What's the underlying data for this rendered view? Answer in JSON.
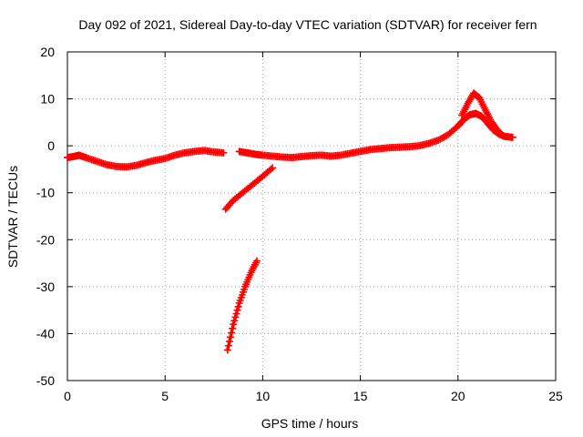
{
  "chart_data": {
    "type": "scatter",
    "title": "Day 092 of 2021, Sidereal Day-to-day VTEC variation (SDTVAR) for receiver fern",
    "xlabel": "GPS time / hours",
    "ylabel": "SDTVAR / TECUs",
    "xlim": [
      0,
      25
    ],
    "ylim": [
      -50,
      20
    ],
    "x_ticks": [
      0,
      5,
      10,
      15,
      20,
      25
    ],
    "y_ticks": [
      -50,
      -40,
      -30,
      -20,
      -10,
      0,
      10,
      20
    ],
    "grid": true,
    "marker": "+",
    "series_color": "#ff0000",
    "series": [
      {
        "name": "main-trace-a",
        "x": [
          0.0,
          0.3,
          0.6,
          1.0,
          1.5,
          2.0,
          2.5,
          3.0,
          3.5,
          4.0,
          4.5,
          5.0,
          5.5,
          6.0,
          6.5,
          7.0,
          7.5,
          8.0
        ],
        "y": [
          -2.5,
          -2.3,
          -2.0,
          -2.6,
          -3.3,
          -4.0,
          -4.4,
          -4.5,
          -4.2,
          -3.6,
          -3.1,
          -2.7,
          -2.0,
          -1.5,
          -1.2,
          -1.0,
          -1.3,
          -1.5
        ]
      },
      {
        "name": "main-trace-b",
        "x": [
          8.8,
          9.2,
          9.6,
          10.0,
          10.5,
          11.0,
          11.5,
          12.0,
          12.5,
          13.0,
          13.5,
          14.0,
          14.5,
          15.0,
          15.5,
          16.0,
          16.5,
          17.0,
          17.5,
          18.0,
          18.5,
          19.0,
          19.5,
          20.0,
          20.3,
          20.6,
          20.9,
          21.2,
          21.5,
          21.8,
          22.1,
          22.4,
          22.8
        ],
        "y": [
          -1.2,
          -1.5,
          -1.8,
          -2.0,
          -2.2,
          -2.4,
          -2.5,
          -2.3,
          -2.1,
          -2.0,
          -2.2,
          -2.0,
          -1.6,
          -1.2,
          -0.8,
          -0.6,
          -0.4,
          -0.3,
          -0.2,
          0.0,
          0.5,
          1.2,
          2.4,
          4.2,
          5.6,
          6.6,
          6.9,
          6.3,
          4.9,
          3.4,
          2.5,
          2.0,
          1.8
        ]
      },
      {
        "name": "upper-arc",
        "x": [
          20.2,
          20.5,
          20.8,
          21.1,
          21.4,
          21.7,
          22.0,
          22.3
        ],
        "y": [
          6.5,
          9.0,
          11.2,
          10.2,
          7.6,
          5.2,
          3.4,
          2.1
        ]
      },
      {
        "name": "diagonal-trace",
        "x": [
          8.1,
          8.5,
          9.0,
          9.5,
          10.0,
          10.5
        ],
        "y": [
          -13.5,
          -11.6,
          -9.9,
          -8.2,
          -6.5,
          -4.7
        ]
      },
      {
        "name": "steep-trace",
        "x": [
          8.2,
          8.5,
          8.8,
          9.1,
          9.4,
          9.7
        ],
        "y": [
          -43.5,
          -38.0,
          -33.5,
          -30.0,
          -27.0,
          -24.5
        ]
      }
    ]
  }
}
